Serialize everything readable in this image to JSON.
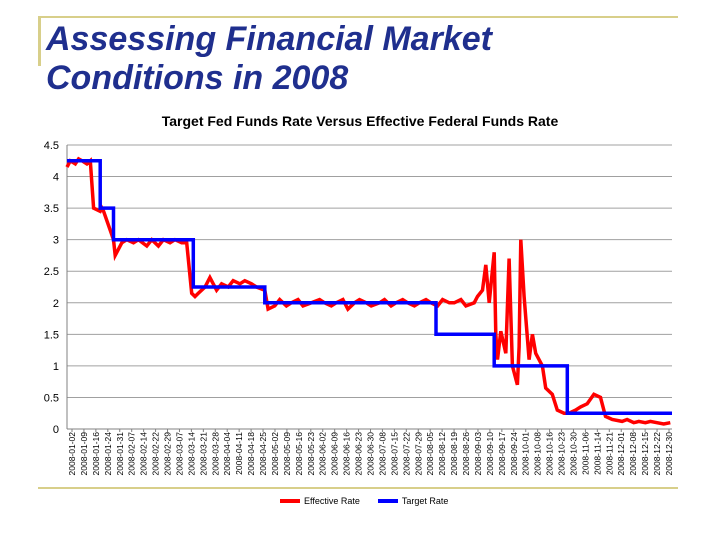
{
  "slide": {
    "title_line1": "Assessing Financial Market",
    "title_line2": "Conditions in 2008"
  },
  "chart_data": {
    "type": "line",
    "title": "Target Fed Funds Rate Versus Effective Federal Funds Rate",
    "ylim": [
      0,
      4.5
    ],
    "yticks": [
      0,
      0.5,
      1,
      1.5,
      2,
      2.5,
      3,
      3.5,
      4,
      4.5
    ],
    "grid": true,
    "legend_position": "bottom",
    "x_tick_labels": [
      "2008-01-02",
      "2008-01-09",
      "2008-01-16",
      "2008-01-24",
      "2008-01-31",
      "2008-02-07",
      "2008-02-14",
      "2008-02-22",
      "2008-02-29",
      "2008-03-07",
      "2008-03-14",
      "2008-03-21",
      "2008-03-28",
      "2008-04-04",
      "2008-04-11",
      "2008-04-18",
      "2008-04-25",
      "2008-05-02",
      "2008-05-09",
      "2008-05-16",
      "2008-05-23",
      "2008-06-02",
      "2008-06-09",
      "2008-06-16",
      "2008-06-23",
      "2008-06-30",
      "2008-07-08",
      "2008-07-15",
      "2008-07-22",
      "2008-07-29",
      "2008-08-05",
      "2008-08-12",
      "2008-08-19",
      "2008-08-26",
      "2008-09-03",
      "2008-09-10",
      "2008-09-17",
      "2008-09-24",
      "2008-10-01",
      "2008-10-08",
      "2008-10-16",
      "2008-10-23",
      "2008-10-30",
      "2008-11-06",
      "2008-11-14",
      "2008-11-21",
      "2008-12-01",
      "2008-12-08",
      "2008-12-15",
      "2008-12-22",
      "2008-12-30"
    ],
    "series": [
      {
        "name": "Effective Rate",
        "color": "#ff0000",
        "x": [
          "2008-01-02",
          "2008-01-04",
          "2008-01-07",
          "2008-01-09",
          "2008-01-11",
          "2008-01-14",
          "2008-01-16",
          "2008-01-18",
          "2008-01-22",
          "2008-01-23",
          "2008-01-24",
          "2008-01-28",
          "2008-01-30",
          "2008-01-31",
          "2008-02-04",
          "2008-02-07",
          "2008-02-11",
          "2008-02-14",
          "2008-02-19",
          "2008-02-22",
          "2008-02-26",
          "2008-02-29",
          "2008-03-04",
          "2008-03-07",
          "2008-03-11",
          "2008-03-14",
          "2008-03-17",
          "2008-03-19",
          "2008-03-21",
          "2008-03-25",
          "2008-03-28",
          "2008-04-01",
          "2008-04-04",
          "2008-04-08",
          "2008-04-11",
          "2008-04-15",
          "2008-04-18",
          "2008-04-22",
          "2008-04-25",
          "2008-04-30",
          "2008-05-02",
          "2008-05-06",
          "2008-05-09",
          "2008-05-13",
          "2008-05-16",
          "2008-05-20",
          "2008-05-23",
          "2008-05-28",
          "2008-06-02",
          "2008-06-05",
          "2008-06-09",
          "2008-06-12",
          "2008-06-16",
          "2008-06-19",
          "2008-06-23",
          "2008-06-26",
          "2008-06-30",
          "2008-07-03",
          "2008-07-08",
          "2008-07-11",
          "2008-07-15",
          "2008-07-18",
          "2008-07-22",
          "2008-07-25",
          "2008-07-29",
          "2008-08-01",
          "2008-08-05",
          "2008-08-08",
          "2008-08-12",
          "2008-08-15",
          "2008-08-19",
          "2008-08-22",
          "2008-08-26",
          "2008-08-29",
          "2008-09-03",
          "2008-09-05",
          "2008-09-08",
          "2008-09-10",
          "2008-09-12",
          "2008-09-15",
          "2008-09-16",
          "2008-09-17",
          "2008-09-19",
          "2008-09-22",
          "2008-09-24",
          "2008-09-26",
          "2008-09-29",
          "2008-09-30",
          "2008-10-01",
          "2008-10-03",
          "2008-10-06",
          "2008-10-08",
          "2008-10-10",
          "2008-10-14",
          "2008-10-16",
          "2008-10-20",
          "2008-10-23",
          "2008-10-27",
          "2008-10-30",
          "2008-11-03",
          "2008-11-06",
          "2008-11-10",
          "2008-11-14",
          "2008-11-18",
          "2008-11-21",
          "2008-11-25",
          "2008-12-01",
          "2008-12-04",
          "2008-12-08",
          "2008-12-11",
          "2008-12-15",
          "2008-12-18",
          "2008-12-22",
          "2008-12-26",
          "2008-12-30"
        ],
        "values": [
          4.15,
          4.25,
          4.2,
          4.28,
          4.25,
          4.2,
          4.25,
          3.5,
          3.45,
          3.5,
          3.45,
          3.15,
          3.0,
          2.75,
          2.95,
          3.0,
          2.95,
          3.0,
          2.9,
          3.0,
          2.9,
          3.0,
          2.95,
          3.0,
          2.95,
          2.95,
          2.15,
          2.1,
          2.15,
          2.25,
          2.4,
          2.2,
          2.3,
          2.25,
          2.35,
          2.3,
          2.35,
          2.3,
          2.25,
          2.2,
          1.9,
          1.95,
          2.05,
          1.95,
          2.0,
          2.05,
          1.95,
          2.0,
          2.05,
          2.0,
          1.95,
          2.0,
          2.05,
          1.9,
          2.0,
          2.05,
          2.0,
          1.95,
          2.0,
          2.05,
          1.95,
          2.0,
          2.05,
          2.0,
          1.95,
          2.0,
          2.05,
          2.0,
          1.95,
          2.05,
          2.0,
          2.0,
          2.05,
          1.95,
          2.0,
          2.1,
          2.2,
          2.6,
          2.0,
          2.8,
          1.5,
          1.1,
          1.55,
          1.2,
          2.7,
          1.0,
          0.7,
          1.3,
          3.0,
          2.1,
          1.1,
          1.5,
          1.2,
          1.0,
          0.65,
          0.55,
          0.3,
          0.25,
          0.25,
          0.3,
          0.35,
          0.4,
          0.55,
          0.5,
          0.2,
          0.15,
          0.12,
          0.15,
          0.1,
          0.12,
          0.1,
          0.12,
          0.1,
          0.08,
          0.1
        ]
      },
      {
        "name": "Target Rate",
        "color": "#0000ff",
        "step": true,
        "x": [
          "2008-01-02",
          "2008-01-22",
          "2008-01-30",
          "2008-03-18",
          "2008-04-30",
          "2008-08-11",
          "2008-09-15",
          "2008-10-08",
          "2008-10-29",
          "2008-12-16",
          "2008-12-31"
        ],
        "values": [
          4.25,
          3.5,
          3.0,
          2.25,
          2.0,
          1.5,
          1.0,
          1.0,
          0.25,
          0.25,
          0.25
        ]
      }
    ]
  }
}
